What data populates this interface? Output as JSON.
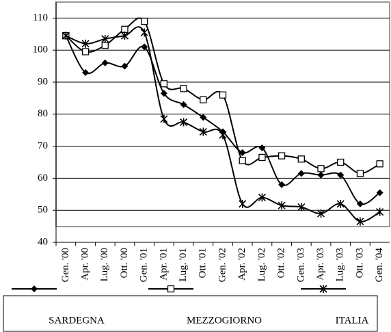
{
  "chart_data": {
    "type": "line",
    "categories": [
      "Gen. '00",
      "Apr. '00",
      "Lug. '00",
      "Ott. '00",
      "Gen. '01",
      "Apr. '01",
      "Lug. '01",
      "Ott. '01",
      "Gen. '02",
      "Apr. '02",
      "Lug. '02",
      "Ott. '02",
      "Gen. '03",
      "Apr. '03",
      "Lug. '03",
      "Ott. '03",
      "Gen. '04"
    ],
    "series": [
      {
        "name": "SARDEGNA",
        "color": "#000000",
        "marker": "diamond",
        "values": [
          104.5,
          93,
          96,
          95,
          101,
          86.5,
          83,
          79,
          74.5,
          68,
          69.5,
          58,
          61.5,
          61,
          61,
          52,
          55.5
        ]
      },
      {
        "name": "MEZZOGIORNO",
        "color": "#000000",
        "marker": "square",
        "values": [
          104.5,
          99.5,
          101.5,
          106.5,
          109,
          89.5,
          88,
          84.5,
          86,
          65.5,
          66.5,
          67,
          66,
          63,
          65,
          61.5,
          64.5
        ]
      },
      {
        "name": "ITALIA",
        "color": "#000000",
        "marker": "asterisk",
        "values": [
          104.5,
          102,
          103.5,
          104.5,
          105.5,
          78.5,
          77.5,
          74.5,
          73.5,
          52,
          54,
          51.5,
          51,
          49,
          52,
          46.5,
          49.5
        ]
      }
    ],
    "ylim": [
      40,
      115
    ],
    "yticks": [
      40,
      50,
      60,
      70,
      80,
      90,
      100,
      110
    ],
    "grid": true,
    "legend": "bottom"
  }
}
